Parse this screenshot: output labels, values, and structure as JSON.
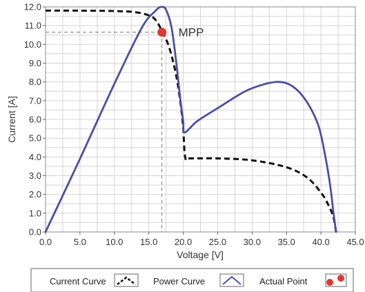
{
  "chart_data": {
    "type": "line",
    "xlabel": "Voltage [V]",
    "ylabel": "Current [A]",
    "xlim": [
      0,
      45
    ],
    "ylim": [
      0,
      12
    ],
    "x_ticks": [
      "0.0",
      "5.0",
      "10.0",
      "15.0",
      "20.0",
      "25.0",
      "30.0",
      "35.0",
      "40.0",
      "45.0"
    ],
    "y_ticks": [
      "0.0",
      "1.0",
      "2.0",
      "3.0",
      "4.0",
      "5.0",
      "6.0",
      "7.0",
      "8.0",
      "9.0",
      "10.0",
      "11.0",
      "12.0"
    ],
    "grid": true,
    "legend_position": "bottom",
    "series": [
      {
        "name": "Current Curve",
        "style": "dashed",
        "color": "#111111",
        "x": [
          0,
          5,
          10,
          13,
          15,
          16,
          17,
          18,
          19,
          19.7,
          20,
          20.3,
          21,
          25,
          30,
          35,
          38,
          40,
          41,
          41.8,
          42.2
        ],
        "y": [
          11.8,
          11.8,
          11.78,
          11.72,
          11.55,
          11.3,
          10.65,
          9.8,
          8.3,
          6.6,
          5.5,
          3.95,
          3.92,
          3.92,
          3.82,
          3.45,
          2.9,
          2.1,
          1.5,
          0.8,
          0
        ]
      },
      {
        "name": "Power Curve",
        "style": "solid",
        "color": "#4a4fa3",
        "x": [
          0,
          5,
          10,
          14,
          16,
          16.8,
          17.5,
          18.3,
          19,
          19.6,
          20,
          20.2,
          22,
          25,
          29,
          32,
          34,
          35.5,
          37,
          38.5,
          39.7,
          40.5,
          41.3,
          41.8,
          42.2
        ],
        "y": [
          0,
          3.9,
          7.9,
          10.9,
          11.8,
          12.0,
          11.85,
          10.9,
          9.0,
          7.0,
          5.9,
          5.3,
          5.9,
          6.6,
          7.5,
          7.9,
          8.0,
          7.85,
          7.4,
          6.6,
          5.6,
          4.3,
          2.6,
          1.1,
          0
        ]
      }
    ],
    "points": [
      {
        "name": "MPP",
        "label": "MPP",
        "x": 16.9,
        "y": 10.65,
        "color": "#e0382e"
      }
    ],
    "legend": [
      {
        "label": "Current Curve",
        "icon": "dashed-curve-icon"
      },
      {
        "label": "Power Curve",
        "icon": "solid-curve-icon"
      },
      {
        "label": "Actual Point",
        "icon": "red-point-icon"
      }
    ]
  }
}
